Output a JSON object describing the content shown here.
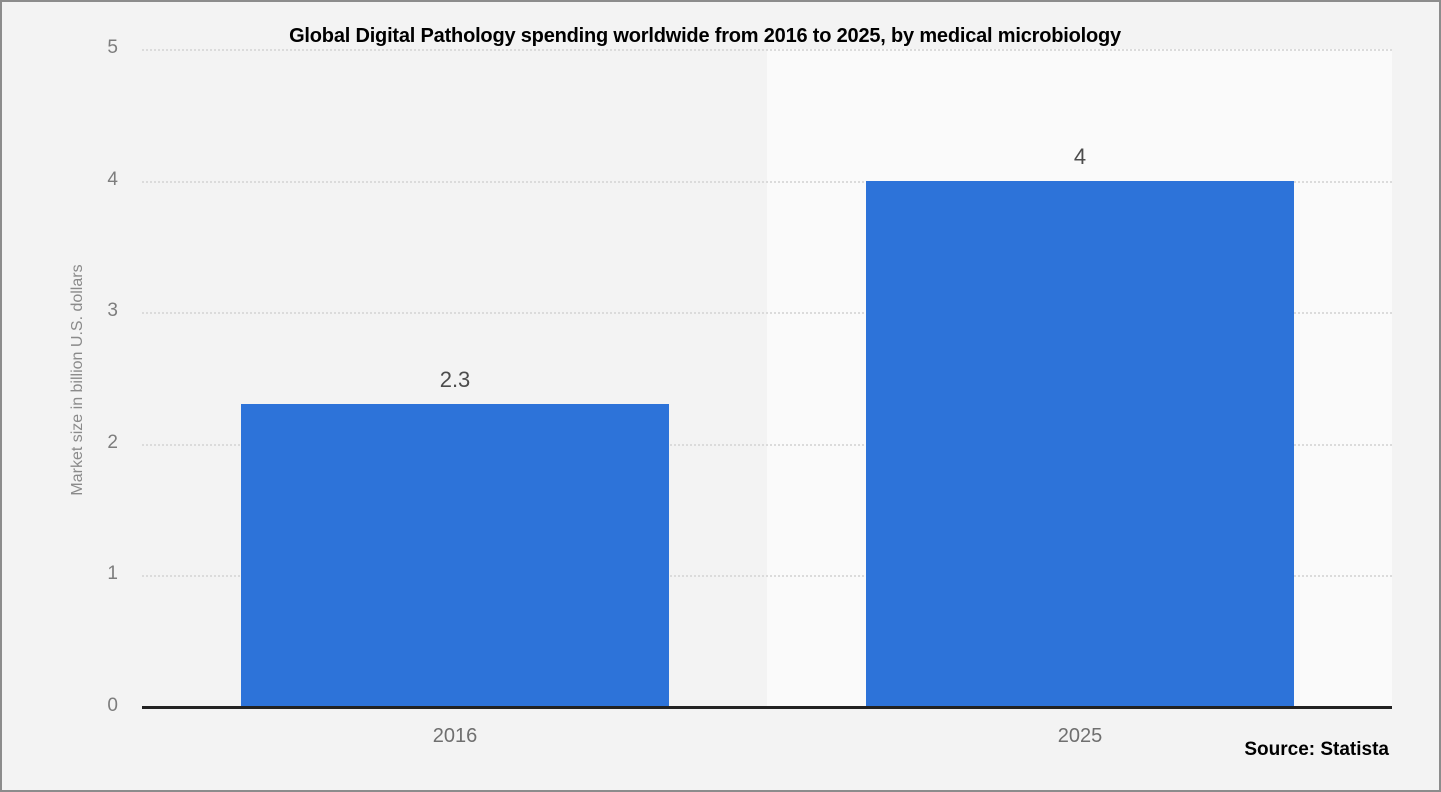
{
  "chart_data": {
    "type": "bar",
    "title": "Global Digital Pathology spending worldwide from 2016 to 2025, by medical microbiology",
    "ylabel": "Market size in billion U.S. dollars",
    "xlabel": "",
    "categories": [
      "2016",
      "2025"
    ],
    "values": [
      2.3,
      4
    ],
    "value_labels": [
      "2.3",
      "4"
    ],
    "yticks": [
      0,
      1,
      2,
      3,
      4,
      5
    ],
    "ytick_labels": [
      "0",
      "1",
      "2",
      "3",
      "4",
      "5"
    ],
    "ylim": [
      0,
      5
    ],
    "grid": "horizontal-dotted",
    "legend": "none",
    "bar_color": "#2d73d9",
    "plot_band_color": "#fafafa",
    "background_color": "#f3f3f3",
    "axis_color": "#222222",
    "gridline_color": "#dbdbdb"
  },
  "source": {
    "label": "Source: Statista"
  }
}
